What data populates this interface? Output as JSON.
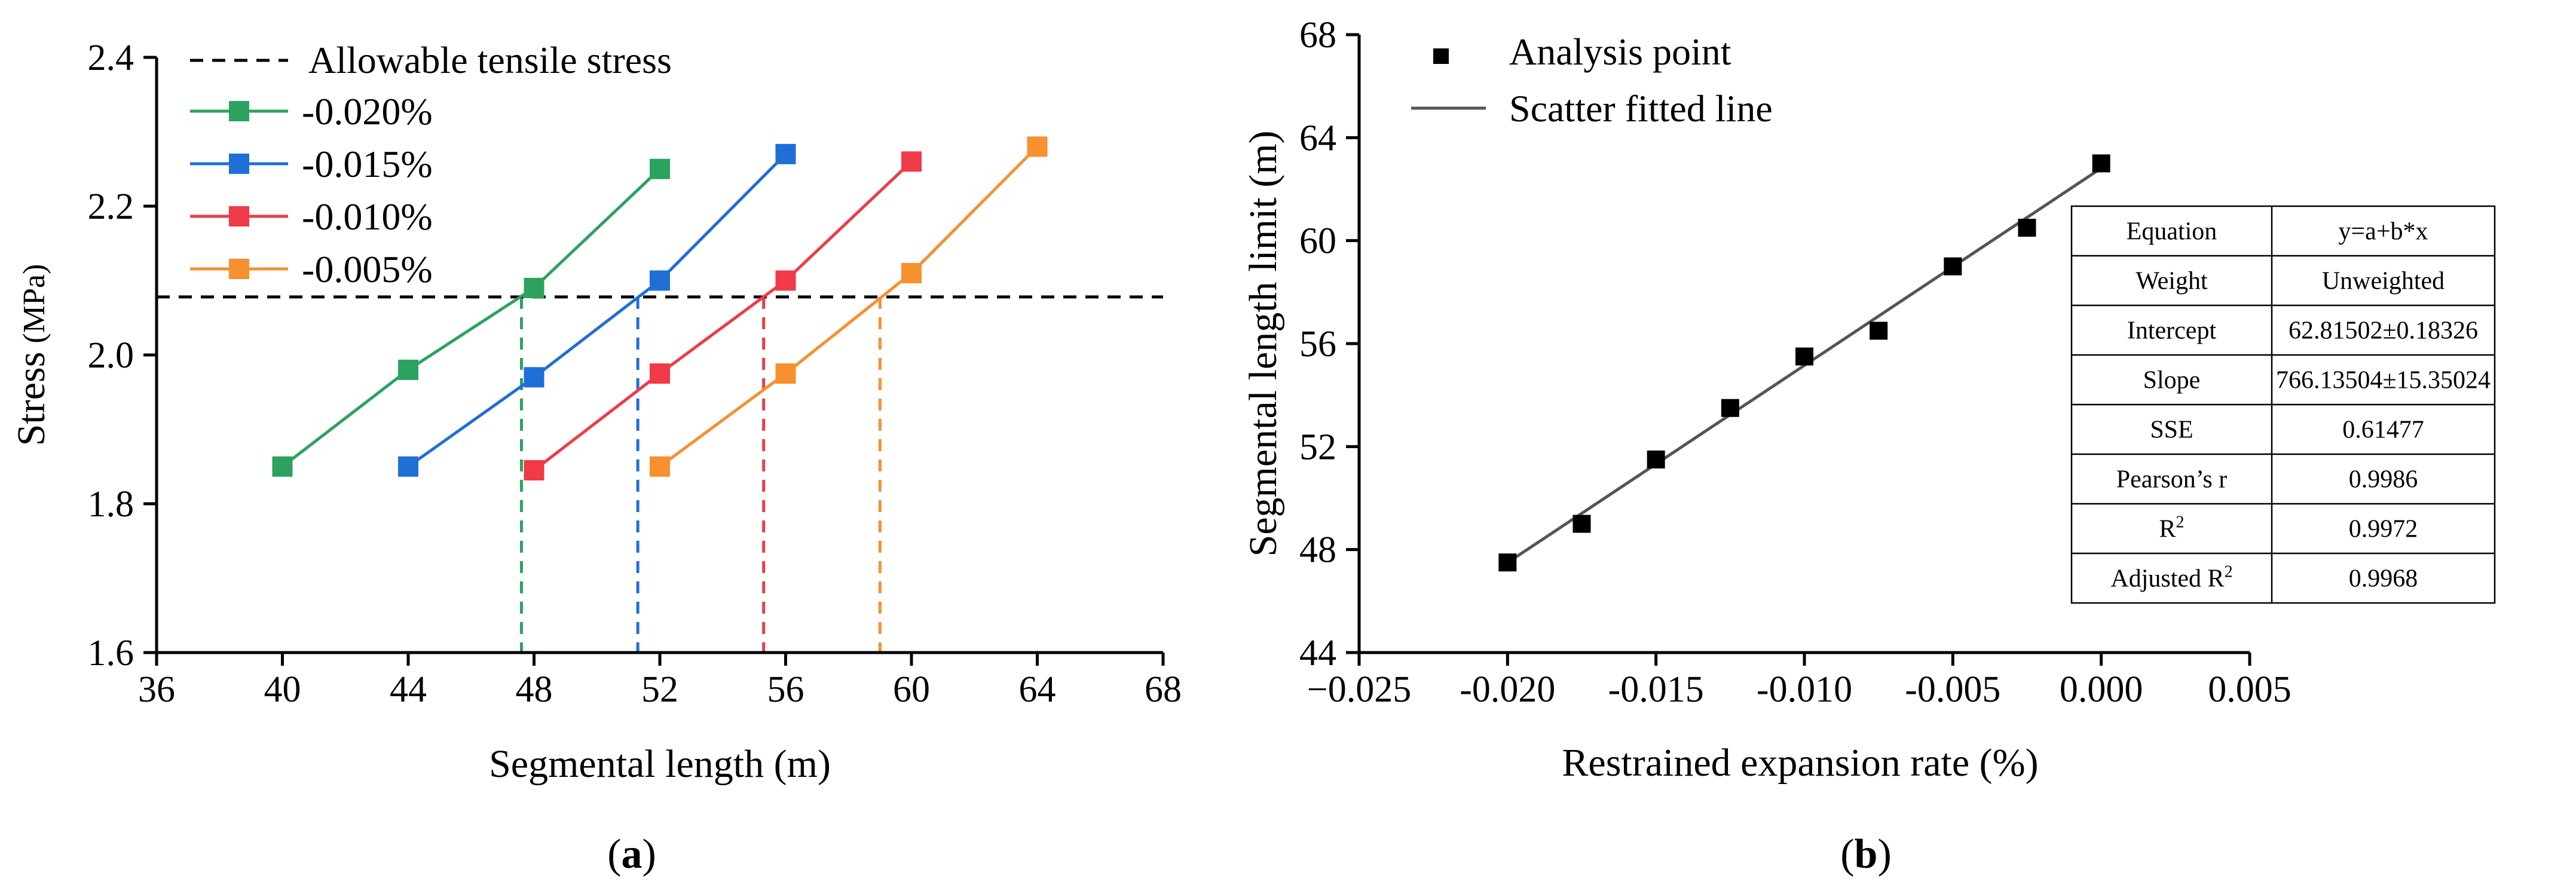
{
  "panel_labels": {
    "a": "a",
    "b": "b"
  },
  "chart_data": [
    {
      "type": "line",
      "panel": "a",
      "xlabel": "Segmental length (m)",
      "ylabel": "Stress",
      "ylabel_unit": "(MPa)",
      "xlim": [
        36,
        68
      ],
      "ylim": [
        1.6,
        2.4
      ],
      "xticks": [
        36,
        40,
        44,
        48,
        52,
        56,
        60,
        64,
        68
      ],
      "yticks": [
        1.6,
        1.8,
        2.0,
        2.2,
        2.4
      ],
      "xtick_labels": [
        "36",
        "40",
        "44",
        "48",
        "52",
        "56",
        "60",
        "64",
        "68"
      ],
      "ytick_labels": [
        "1.6",
        "1.8",
        "2.0",
        "2.2",
        "2.4"
      ],
      "reference_line": {
        "label": "Allowable tensile stress",
        "y": 2.078
      },
      "series": [
        {
          "name": "-0.020%",
          "color": "#2ca25f",
          "x": [
            40,
            44,
            48,
            52
          ],
          "y": [
            1.85,
            1.98,
            2.09,
            2.25
          ],
          "intersection_x": 47.6
        },
        {
          "name": "-0.015%",
          "color": "#1f6fd6",
          "x": [
            44,
            48,
            52,
            56
          ],
          "y": [
            1.85,
            1.97,
            2.1,
            2.27
          ],
          "intersection_x": 51.3
        },
        {
          "name": "-0.010%",
          "color": "#f03a47",
          "x": [
            48,
            52,
            56,
            60
          ],
          "y": [
            1.845,
            1.975,
            2.1,
            2.26
          ],
          "intersection_x": 55.3
        },
        {
          "name": "-0.005%",
          "color": "#f7902e",
          "x": [
            52,
            56,
            60,
            64
          ],
          "y": [
            1.85,
            1.975,
            2.11,
            2.28
          ],
          "intersection_x": 59.0
        }
      ]
    },
    {
      "type": "scatter",
      "panel": "b",
      "xlabel": "Restrained expansion rate (%)",
      "ylabel": "Segmental  length limit (m)",
      "xlim": [
        -0.025,
        0.005
      ],
      "ylim": [
        44,
        68
      ],
      "xticks": [
        -0.025,
        -0.02,
        -0.015,
        -0.01,
        -0.005,
        0.0,
        0.005
      ],
      "yticks": [
        44,
        48,
        52,
        56,
        60,
        64,
        68
      ],
      "xtick_labels": [
        "−0.025",
        "-0.020",
        "-0.015",
        "-0.010",
        "-0.005",
        "0.000",
        "0.005"
      ],
      "ytick_labels": [
        "44",
        "48",
        "52",
        "56",
        "60",
        "64",
        "68"
      ],
      "legend": {
        "points": "Analysis point",
        "fit": "Scatter fitted line"
      },
      "points": {
        "x": [
          -0.02,
          -0.0175,
          -0.015,
          -0.0125,
          -0.01,
          -0.0075,
          -0.005,
          -0.0025,
          0.0
        ],
        "y": [
          47.5,
          49.0,
          51.5,
          53.5,
          55.5,
          56.5,
          59.0,
          60.5,
          63.0
        ]
      },
      "fit": {
        "intercept": 62.81502,
        "slope": 766.13504,
        "x_range": [
          -0.02,
          0.0
        ]
      },
      "fit_table": [
        {
          "label": "Equation",
          "value": "y=a+b*x"
        },
        {
          "label": "Weight",
          "value": "Unweighted"
        },
        {
          "label": "Intercept",
          "value": "62.81502±0.18326"
        },
        {
          "label": "Slope",
          "value": "766.13504±15.35024"
        },
        {
          "label": "SSE",
          "value": "0.61477"
        },
        {
          "label": "Pearson’s r",
          "value": "0.9986"
        },
        {
          "label": "R",
          "label_sup": "2",
          "value": "0.9972"
        },
        {
          "label": "Adjusted R",
          "label_sup": "2",
          "value": "0.9968"
        }
      ]
    }
  ]
}
